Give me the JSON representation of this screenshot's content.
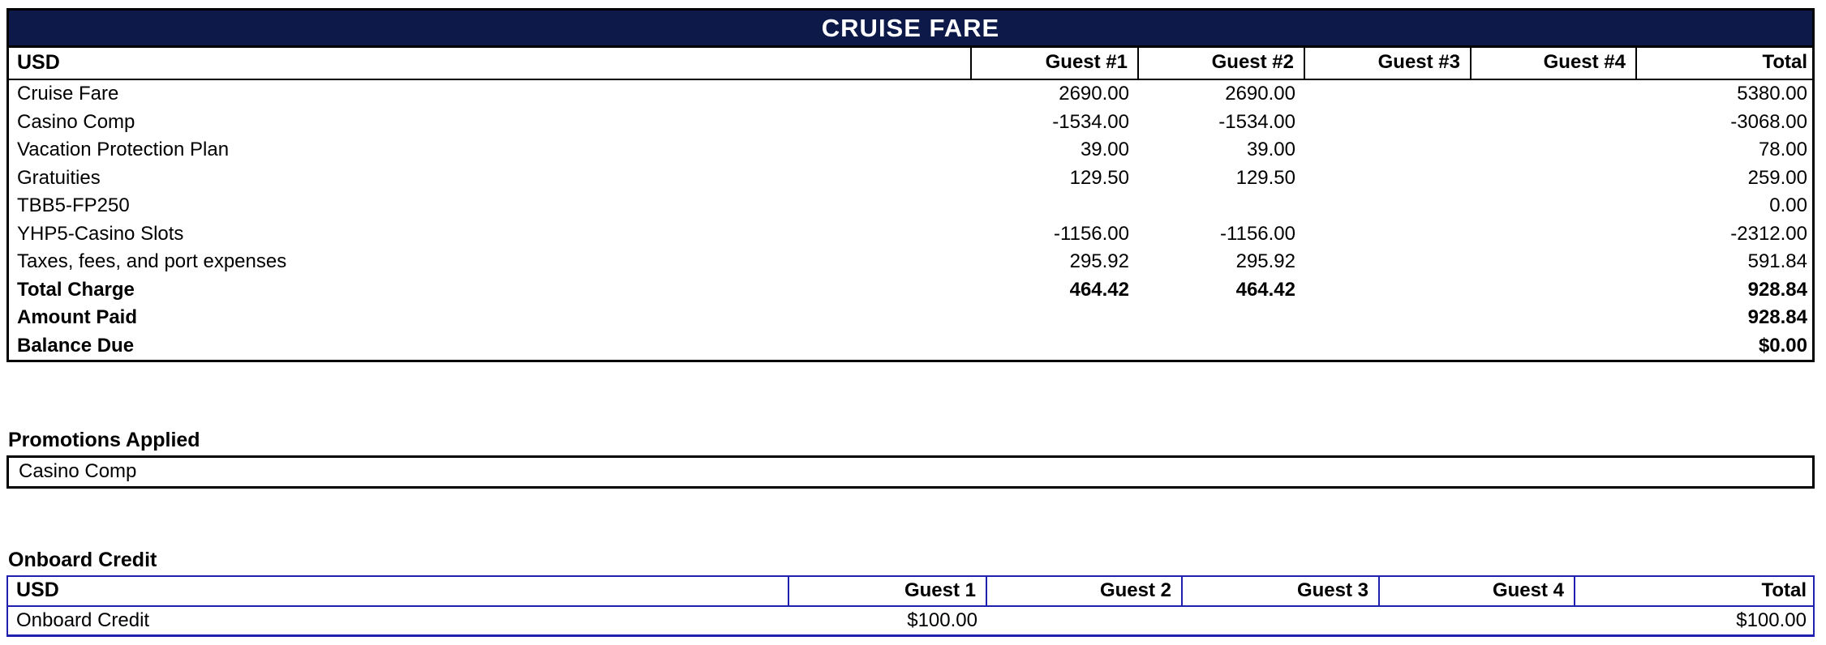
{
  "colors": {
    "title_bar_bg": "#0d1a49",
    "title_text": "#ffffff",
    "fare_table_border": "#000000",
    "credit_table_border": "#2020b0"
  },
  "cruise_fare_table": {
    "title": "CRUISE FARE",
    "header": {
      "currency": "USD",
      "columns": [
        "Guest #1",
        "Guest #2",
        "Guest #3",
        "Guest #4",
        "Total"
      ]
    },
    "rows": [
      {
        "label": "Cruise Fare",
        "values": [
          "2690.00",
          "2690.00",
          "",
          "",
          "5380.00"
        ],
        "bold": false
      },
      {
        "label": "Casino Comp",
        "values": [
          "-1534.00",
          "-1534.00",
          "",
          "",
          "-3068.00"
        ],
        "bold": false
      },
      {
        "label": "Vacation Protection Plan",
        "values": [
          "39.00",
          "39.00",
          "",
          "",
          "78.00"
        ],
        "bold": false
      },
      {
        "label": "Gratuities",
        "values": [
          "129.50",
          "129.50",
          "",
          "",
          "259.00"
        ],
        "bold": false
      },
      {
        "label": "TBB5-FP250",
        "values": [
          "",
          "",
          "",
          "",
          "0.00"
        ],
        "bold": false
      },
      {
        "label": "YHP5-Casino Slots",
        "values": [
          "-1156.00",
          "-1156.00",
          "",
          "",
          "-2312.00"
        ],
        "bold": false
      },
      {
        "label": "Taxes, fees, and port expenses",
        "values": [
          "295.92",
          "295.92",
          "",
          "",
          "591.84"
        ],
        "bold": false
      },
      {
        "label": "Total Charge",
        "values": [
          "464.42",
          "464.42",
          "",
          "",
          "928.84"
        ],
        "bold": true
      },
      {
        "label": "Amount Paid",
        "values": [
          "",
          "",
          "",
          "",
          "928.84"
        ],
        "bold": true
      },
      {
        "label": "Balance Due",
        "values": [
          "",
          "",
          "",
          "",
          "$0.00"
        ],
        "bold": true
      }
    ]
  },
  "promotions": {
    "section_label": "Promotions Applied",
    "items": [
      "Casino Comp"
    ]
  },
  "onboard_credit": {
    "section_label": "Onboard Credit",
    "header": {
      "currency": "USD",
      "columns": [
        "Guest 1",
        "Guest 2",
        "Guest 3",
        "Guest 4",
        "Total"
      ]
    },
    "rows": [
      {
        "label": "Onboard Credit",
        "values": [
          "$100.00",
          "",
          "",
          "",
          "$100.00"
        ],
        "bold": false
      }
    ]
  }
}
